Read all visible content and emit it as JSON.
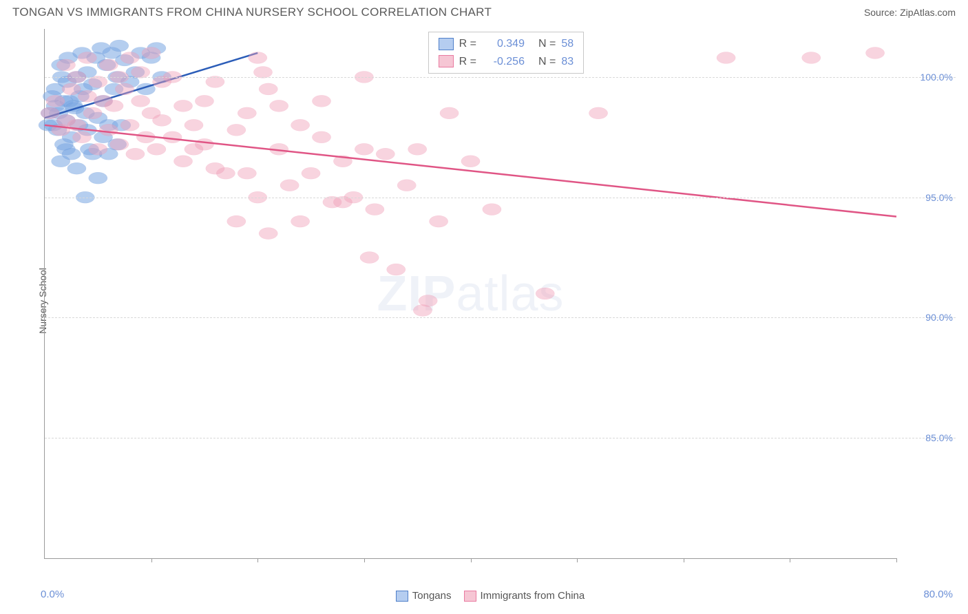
{
  "header": {
    "title": "TONGAN VS IMMIGRANTS FROM CHINA NURSERY SCHOOL CORRELATION CHART",
    "source": "Source: ZipAtlas.com"
  },
  "axes": {
    "y_label": "Nursery School",
    "y_ticks": [
      85.0,
      90.0,
      95.0,
      100.0
    ],
    "y_tick_labels": [
      "85.0%",
      "90.0%",
      "95.0%",
      "100.0%"
    ],
    "y_min": 80.0,
    "y_max": 102.0,
    "x_min": 0.0,
    "x_max": 80.0,
    "x_start_label": "0.0%",
    "x_end_label": "80.0%",
    "x_tick_positions": [
      10,
      20,
      30,
      40,
      50,
      60,
      70,
      80
    ],
    "grid_color": "#d8d8d8",
    "axis_color": "#9a9a9a",
    "tick_label_color": "#6b8fd6"
  },
  "watermark": {
    "part1": "ZIP",
    "part2": "atlas"
  },
  "legend": {
    "stat_rows": [
      {
        "swatch_fill": "#b5cdf0",
        "swatch_border": "#4f7fc9",
        "r_label": "R =",
        "r_value": "0.349",
        "n_label": "N =",
        "n_value": "58"
      },
      {
        "swatch_fill": "#f6c6d4",
        "swatch_border": "#e97aa0",
        "r_label": "R =",
        "r_value": "-0.256",
        "n_label": "N =",
        "n_value": "83"
      }
    ],
    "bottom": [
      {
        "swatch_fill": "#b5cdf0",
        "swatch_border": "#4f7fc9",
        "label": "Tongans"
      },
      {
        "swatch_fill": "#f6c6d4",
        "swatch_border": "#e97aa0",
        "label": "Immigrants from China"
      }
    ]
  },
  "series": [
    {
      "name": "Tongans",
      "color_fill": "rgba(120,165,225,0.55)",
      "color_stroke": "#4f7fc9",
      "marker_radius": 8,
      "trend": {
        "x1": 0,
        "y1": 98.3,
        "x2": 20,
        "y2": 101.0,
        "color": "#2b5db8",
        "width": 2.5
      },
      "points": [
        [
          0.5,
          98.5
        ],
        [
          0.8,
          98.0
        ],
        [
          1.0,
          99.5
        ],
        [
          1.2,
          97.8
        ],
        [
          1.5,
          100.5
        ],
        [
          1.8,
          99.0
        ],
        [
          2.0,
          98.2
        ],
        [
          2.2,
          100.8
        ],
        [
          2.5,
          97.5
        ],
        [
          2.7,
          98.8
        ],
        [
          3.0,
          100.0
        ],
        [
          3.3,
          99.2
        ],
        [
          3.5,
          101.0
        ],
        [
          3.8,
          98.5
        ],
        [
          4.0,
          100.2
        ],
        [
          4.2,
          97.0
        ],
        [
          4.5,
          99.7
        ],
        [
          4.8,
          100.8
        ],
        [
          5.0,
          98.3
        ],
        [
          5.3,
          101.2
        ],
        [
          5.5,
          99.0
        ],
        [
          5.8,
          100.5
        ],
        [
          6.0,
          98.0
        ],
        [
          6.3,
          101.0
        ],
        [
          6.5,
          99.5
        ],
        [
          6.8,
          100.0
        ],
        [
          7.0,
          101.3
        ],
        [
          7.5,
          100.7
        ],
        [
          8.0,
          99.8
        ],
        [
          8.5,
          100.2
        ],
        [
          9.0,
          101.0
        ],
        [
          9.5,
          99.5
        ],
        [
          10.0,
          100.8
        ],
        [
          10.5,
          101.2
        ],
        [
          11.0,
          100.0
        ],
        [
          1.5,
          96.5
        ],
        [
          2.0,
          97.0
        ],
        [
          2.5,
          96.8
        ],
        [
          3.0,
          96.2
        ],
        [
          3.8,
          95.0
        ],
        [
          4.5,
          96.8
        ],
        [
          5.0,
          95.8
        ],
        [
          1.0,
          98.8
        ],
        [
          1.8,
          97.2
        ],
        [
          2.3,
          99.0
        ],
        [
          3.2,
          98.0
        ],
        [
          4.0,
          97.8
        ],
        [
          0.3,
          98.0
        ],
        [
          0.7,
          99.2
        ],
        [
          1.3,
          98.5
        ],
        [
          1.6,
          100.0
        ],
        [
          2.1,
          99.8
        ],
        [
          2.8,
          98.7
        ],
        [
          3.6,
          99.5
        ],
        [
          5.5,
          97.5
        ],
        [
          6.0,
          96.8
        ],
        [
          6.8,
          97.2
        ],
        [
          7.2,
          98.0
        ]
      ]
    },
    {
      "name": "Immigrants from China",
      "color_fill": "rgba(240,160,185,0.45)",
      "color_stroke": "#e97aa0",
      "marker_radius": 8,
      "trend": {
        "x1": 0,
        "y1": 98.0,
        "x2": 80,
        "y2": 94.2,
        "color": "#e05585",
        "width": 2.5
      },
      "points": [
        [
          0.5,
          98.5
        ],
        [
          1.0,
          99.0
        ],
        [
          1.5,
          97.8
        ],
        [
          2.0,
          98.2
        ],
        [
          2.5,
          99.5
        ],
        [
          3.0,
          98.0
        ],
        [
          3.5,
          97.5
        ],
        [
          4.0,
          99.2
        ],
        [
          4.5,
          98.5
        ],
        [
          5.0,
          97.0
        ],
        [
          5.5,
          99.0
        ],
        [
          6.0,
          97.8
        ],
        [
          6.5,
          98.8
        ],
        [
          7.0,
          97.2
        ],
        [
          7.5,
          99.5
        ],
        [
          8.0,
          98.0
        ],
        [
          8.5,
          96.8
        ],
        [
          9.0,
          99.0
        ],
        [
          9.5,
          97.5
        ],
        [
          10.0,
          98.5
        ],
        [
          10.5,
          97.0
        ],
        [
          11.0,
          99.8
        ],
        [
          12.0,
          97.5
        ],
        [
          13.0,
          96.5
        ],
        [
          14.0,
          98.0
        ],
        [
          15.0,
          97.2
        ],
        [
          16.0,
          99.8
        ],
        [
          17.0,
          96.0
        ],
        [
          18.0,
          97.8
        ],
        [
          19.0,
          98.5
        ],
        [
          20.0,
          100.8
        ],
        [
          20.5,
          100.2
        ],
        [
          21.0,
          99.5
        ],
        [
          22.0,
          97.0
        ],
        [
          23.0,
          95.5
        ],
        [
          24.0,
          98.0
        ],
        [
          25.0,
          96.0
        ],
        [
          26.0,
          97.5
        ],
        [
          27.0,
          94.8
        ],
        [
          28.0,
          96.5
        ],
        [
          29.0,
          95.0
        ],
        [
          30.0,
          97.0
        ],
        [
          30.5,
          92.5
        ],
        [
          31.0,
          94.5
        ],
        [
          32.0,
          96.8
        ],
        [
          33.0,
          92.0
        ],
        [
          34.0,
          95.5
        ],
        [
          35.0,
          97.0
        ],
        [
          35.5,
          90.3
        ],
        [
          36.0,
          90.7
        ],
        [
          37.0,
          94.0
        ],
        [
          38.0,
          98.5
        ],
        [
          40.0,
          96.5
        ],
        [
          42.0,
          94.5
        ],
        [
          47.0,
          91.0
        ],
        [
          52.0,
          98.5
        ],
        [
          64.0,
          100.8
        ],
        [
          72.0,
          100.8
        ],
        [
          78.0,
          101.0
        ],
        [
          2.0,
          100.5
        ],
        [
          3.0,
          100.0
        ],
        [
          4.0,
          100.8
        ],
        [
          5.0,
          99.8
        ],
        [
          6.0,
          100.5
        ],
        [
          7.0,
          100.0
        ],
        [
          8.0,
          100.8
        ],
        [
          9.0,
          100.2
        ],
        [
          10.0,
          101.0
        ],
        [
          11.0,
          98.2
        ],
        [
          12.0,
          100.0
        ],
        [
          13.0,
          98.8
        ],
        [
          14.0,
          97.0
        ],
        [
          15.0,
          99.0
        ],
        [
          16.0,
          96.2
        ],
        [
          18.0,
          94.0
        ],
        [
          19.0,
          96.0
        ],
        [
          20.0,
          95.0
        ],
        [
          21.0,
          93.5
        ],
        [
          22.0,
          98.8
        ],
        [
          24.0,
          94.0
        ],
        [
          26.0,
          99.0
        ],
        [
          28.0,
          94.8
        ],
        [
          30.0,
          100.0
        ]
      ]
    }
  ]
}
